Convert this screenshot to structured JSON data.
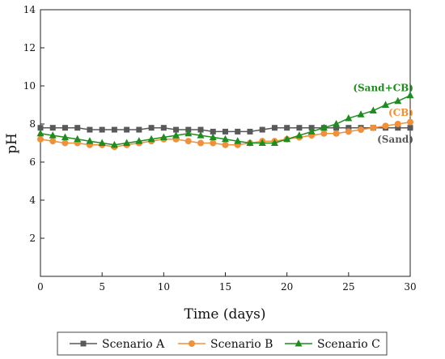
{
  "chart_data": {
    "type": "line",
    "xlabel": "Time (days)",
    "ylabel": "pH",
    "xlim": [
      0,
      30
    ],
    "ylim": [
      0,
      14
    ],
    "x_ticks": [
      0,
      5,
      10,
      15,
      20,
      25,
      30
    ],
    "y_ticks": [
      2,
      4,
      6,
      8,
      10,
      12,
      14
    ],
    "grid": false,
    "legend_position": "bottom",
    "series": [
      {
        "name": "Scenario A",
        "color": "#595959",
        "marker": "square",
        "x": [
          0,
          1,
          2,
          3,
          4,
          5,
          6,
          7,
          8,
          9,
          10,
          11,
          12,
          13,
          14,
          15,
          16,
          17,
          18,
          19,
          20,
          21,
          22,
          23,
          24,
          25,
          26,
          27,
          28,
          29,
          30
        ],
        "y": [
          7.8,
          7.8,
          7.8,
          7.8,
          7.7,
          7.7,
          7.7,
          7.7,
          7.7,
          7.8,
          7.8,
          7.7,
          7.7,
          7.7,
          7.6,
          7.6,
          7.6,
          7.6,
          7.7,
          7.8,
          7.8,
          7.8,
          7.8,
          7.8,
          7.8,
          7.8,
          7.8,
          7.8,
          7.8,
          7.8,
          7.8
        ]
      },
      {
        "name": "Scenario B",
        "color": "#f0913a",
        "marker": "circle",
        "x": [
          0,
          1,
          2,
          3,
          4,
          5,
          6,
          7,
          8,
          9,
          10,
          11,
          12,
          13,
          14,
          15,
          16,
          17,
          18,
          19,
          20,
          21,
          22,
          23,
          24,
          25,
          26,
          27,
          28,
          29,
          30
        ],
        "y": [
          7.2,
          7.1,
          7.0,
          7.0,
          6.9,
          6.9,
          6.8,
          6.9,
          7.0,
          7.1,
          7.2,
          7.2,
          7.1,
          7.0,
          7.0,
          6.9,
          6.9,
          7.0,
          7.1,
          7.1,
          7.2,
          7.3,
          7.4,
          7.5,
          7.5,
          7.6,
          7.7,
          7.8,
          7.9,
          8.0,
          8.1
        ]
      },
      {
        "name": "Scenario C",
        "color": "#1e8c1e",
        "marker": "triangle",
        "x": [
          0,
          1,
          2,
          3,
          4,
          5,
          6,
          7,
          8,
          9,
          10,
          11,
          12,
          13,
          14,
          15,
          16,
          17,
          18,
          19,
          20,
          21,
          22,
          23,
          24,
          25,
          26,
          27,
          28,
          29,
          30
        ],
        "y": [
          7.5,
          7.4,
          7.3,
          7.2,
          7.1,
          7.0,
          6.9,
          7.0,
          7.1,
          7.2,
          7.3,
          7.4,
          7.5,
          7.4,
          7.3,
          7.2,
          7.1,
          7.0,
          7.0,
          7.0,
          7.2,
          7.4,
          7.6,
          7.8,
          8.0,
          8.3,
          8.5,
          8.7,
          9.0,
          9.2,
          9.5
        ]
      }
    ],
    "annotations": [
      {
        "text": "(Sand+CB)",
        "color": "#1e8c1e",
        "x": 30,
        "y": 9.9
      },
      {
        "text": "(CB)",
        "color": "#f0913a",
        "x": 30,
        "y": 8.6
      },
      {
        "text": "(Sand)",
        "color": "#595959",
        "x": 30,
        "y": 7.2
      }
    ]
  }
}
